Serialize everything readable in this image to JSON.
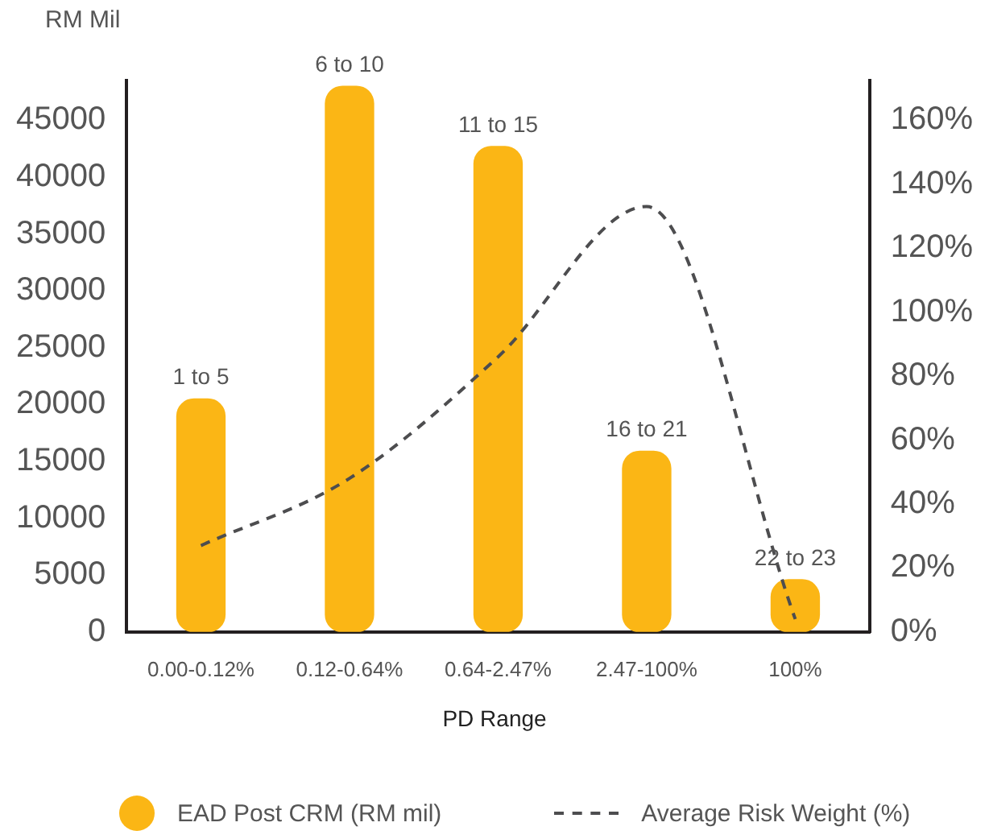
{
  "chart_data": {
    "type": "bar",
    "categories": [
      "0.00-0.12%",
      "0.12-0.64%",
      "0.64-2.47%",
      "2.47-100%",
      "100%"
    ],
    "xlabel": "PD Range",
    "ylabel": "RM Mil",
    "series": [
      {
        "name": "EAD Post CRM (RM mil)",
        "color": "#fbb615",
        "values": [
          20500,
          48000,
          42700,
          15900,
          4600
        ]
      },
      {
        "name": "Average Risk Weight (%)",
        "type": "line",
        "axis": "y2",
        "color": "#4d4d4f",
        "line_style": "dashed",
        "marker": "none",
        "values": [
          27,
          48,
          86,
          133,
          4
        ]
      }
    ],
    "ylim": [
      0,
      48500
    ],
    "yticks": [
      0,
      5000,
      10000,
      15000,
      20000,
      25000,
      30000,
      35000,
      40000,
      45000
    ],
    "y2lim": [
      0,
      172.4
    ],
    "y2ticks": [
      {
        "value": 0,
        "label": "0%"
      },
      {
        "value": 20,
        "label": "20%"
      },
      {
        "value": 40,
        "label": "40%"
      },
      {
        "value": 60,
        "label": "60%"
      },
      {
        "value": 80,
        "label": "80%"
      },
      {
        "value": 100,
        "label": "100%"
      },
      {
        "value": 120,
        "label": "120%"
      },
      {
        "value": 140,
        "label": "140%"
      },
      {
        "value": 160,
        "label": "160%"
      }
    ],
    "annotations": [
      {
        "text": "1 to 5",
        "x": "0.00-0.12%",
        "y": 20500
      },
      {
        "text": "6 to 10",
        "x": "0.12-0.64%",
        "y": 48000
      },
      {
        "text": "11 to 15",
        "x": "0.64-2.47%",
        "y": 42700
      },
      {
        "text": "16 to 21",
        "x": "2.47-100%",
        "y": 15900
      },
      {
        "text": "22 to 23",
        "x": "100%",
        "y": 4600
      }
    ],
    "grid": false,
    "legend": "bottom"
  }
}
